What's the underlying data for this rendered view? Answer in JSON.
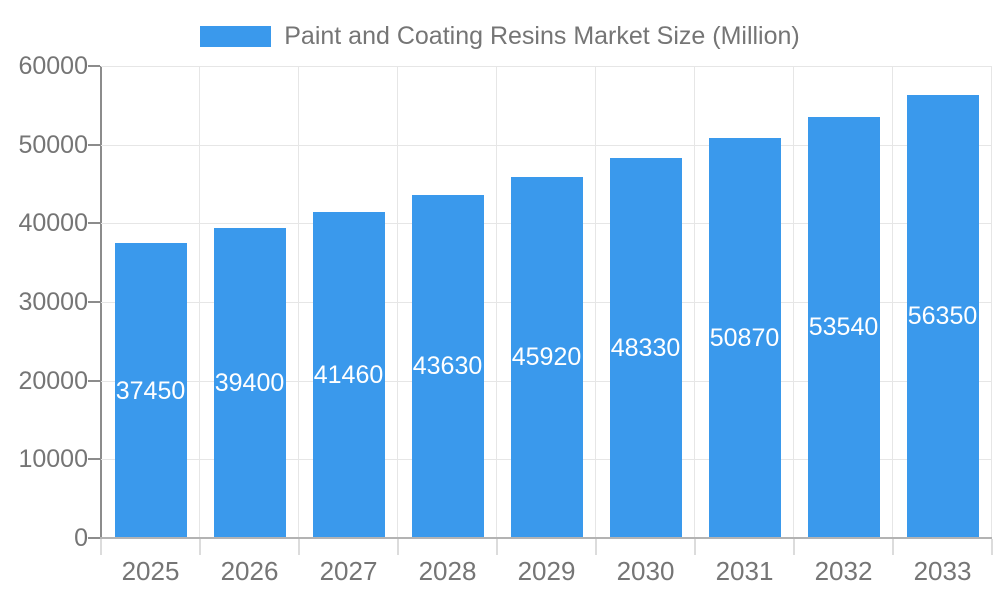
{
  "legend": {
    "label": "Paint and Coating Resins Market Size (Million)"
  },
  "chart_data": {
    "type": "bar",
    "title": "Paint and Coating Resins Market Size (Million)",
    "series": [
      {
        "name": "Paint and Coating Resins Market Size (Million)",
        "values": [
          37450,
          39400,
          41460,
          43630,
          45920,
          48330,
          50870,
          53540,
          56350
        ]
      }
    ],
    "categories": [
      "2025",
      "2026",
      "2027",
      "2028",
      "2029",
      "2030",
      "2031",
      "2032",
      "2033"
    ],
    "xlabel": "",
    "ylabel": "",
    "ylim": [
      0,
      60000
    ],
    "yticks": [
      0,
      10000,
      20000,
      30000,
      40000,
      50000,
      60000
    ],
    "grid": true,
    "legend_position": "top-center",
    "value_label_position": "inside-center",
    "value_label_color": "#ffffff"
  },
  "colors": {
    "bar": "#3a99ec",
    "grid": "#e6e6e6",
    "y_axis_line": "#8c8c8c",
    "x_axis_line": "#b3b3b3",
    "text": "#757575",
    "background": "#ffffff"
  }
}
